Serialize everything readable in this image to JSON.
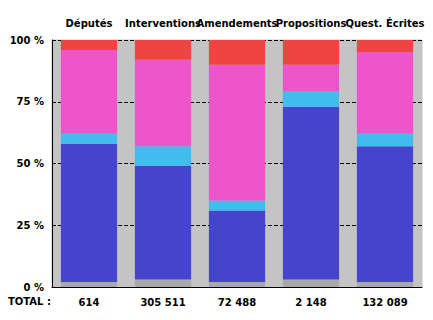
{
  "chart_data": {
    "type": "bar",
    "stacked": true,
    "grid": true,
    "categories": [
      "Députés",
      "Interventions",
      "Amendements",
      "Propositions",
      "Quest. Écrites"
    ],
    "series": [
      {
        "color": "#a9a9a9",
        "values": [
          2,
          3,
          2,
          3,
          2
        ]
      },
      {
        "color": "#4444cc",
        "values": [
          56,
          46,
          29,
          70,
          55
        ]
      },
      {
        "color": "#44bbee",
        "values": [
          4,
          8,
          4,
          6,
          5
        ]
      },
      {
        "color": "#ee55cc",
        "values": [
          34,
          35,
          55,
          11,
          33
        ]
      },
      {
        "color": "#ee4444",
        "values": [
          4,
          8,
          10,
          10,
          5
        ]
      }
    ],
    "ylim": [
      0,
      100
    ],
    "yticks": [
      {
        "value": 0,
        "label": "0 %"
      },
      {
        "value": 25,
        "label": "25 %"
      },
      {
        "value": 50,
        "label": "50 %"
      },
      {
        "value": 75,
        "label": "75 %"
      },
      {
        "value": 100,
        "label": "100 %"
      }
    ],
    "totals": {
      "label": "TOTAL :",
      "values": [
        614,
        305511,
        72488,
        2148,
        132089
      ],
      "value_labels": [
        "614",
        "305 511",
        "72 488",
        "2 148",
        "132 089"
      ]
    }
  }
}
